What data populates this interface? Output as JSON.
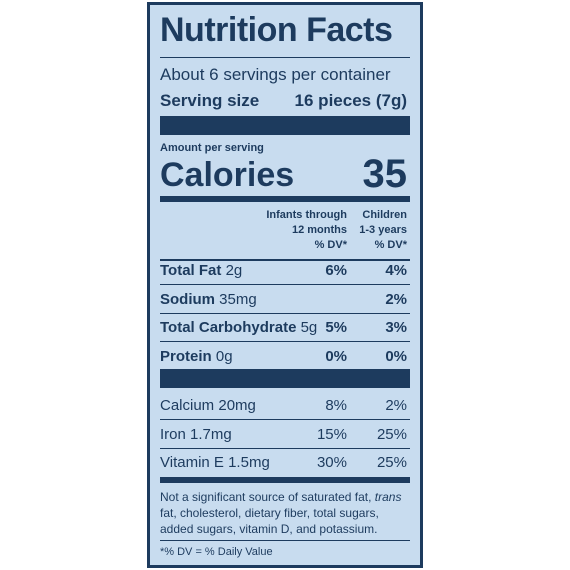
{
  "label": {
    "title": "Nutrition Facts",
    "servings": "About 6 servings per container",
    "serving_size": {
      "label": "Serving size",
      "value": "16 pieces (7g)"
    },
    "amount_per_serving": "Amount per serving",
    "calories": {
      "label": "Calories",
      "value": "35"
    },
    "columns": [
      [
        "Infants through",
        "12 months",
        "% DV*"
      ],
      [
        "Children",
        "1-3 years",
        "% DV*"
      ]
    ],
    "nutrients": [
      {
        "name": "Total Fat",
        "amount": "2g",
        "dv": [
          "6%",
          "4%"
        ]
      },
      {
        "name": "Sodium",
        "amount": "35mg",
        "dv": [
          null,
          "2%"
        ]
      },
      {
        "name": "Total Carbohydrate",
        "amount": "5g",
        "dv": [
          "5%",
          "3%"
        ]
      },
      {
        "name": "Protein",
        "amount": "0g",
        "dv": [
          "0%",
          "0%"
        ]
      }
    ],
    "vitamins": [
      {
        "name": "Calcium",
        "amount": "20mg",
        "dv": [
          "8%",
          "2%"
        ]
      },
      {
        "name": "Iron",
        "amount": "1.7mg",
        "dv": [
          "15%",
          "25%"
        ]
      },
      {
        "name": "Vitamin E",
        "amount": "1.5mg",
        "dv": [
          "30%",
          "25%"
        ]
      }
    ],
    "footnote": [
      "Not a significant source of saturated fat, ",
      "trans",
      " fat, cholesterol, dietary fiber, total sugars, added sugars, vitamin D, and potassium."
    ],
    "dv_note": "*% DV = % Daily Value"
  }
}
